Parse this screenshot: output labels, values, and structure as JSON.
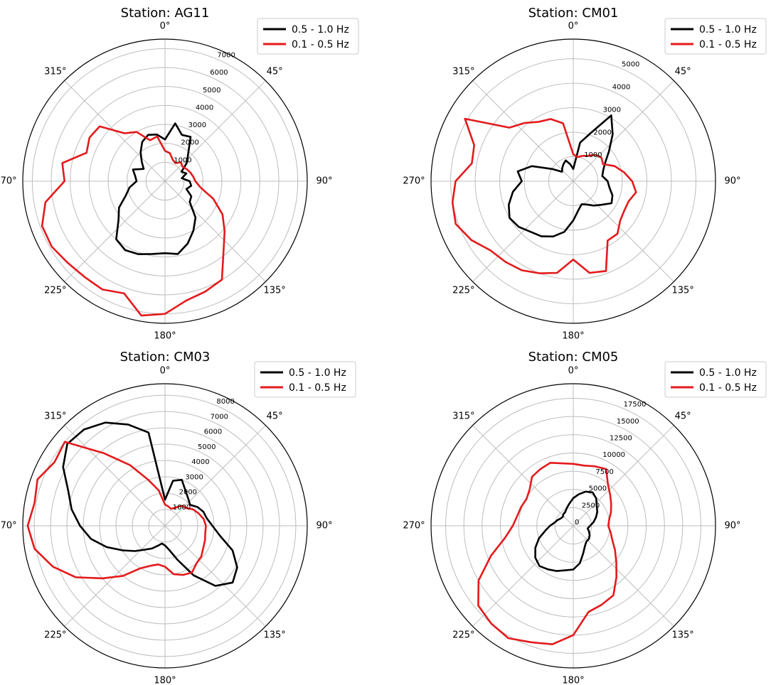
{
  "chart_data": [
    {
      "type": "polar-line",
      "title": "Station: AG11",
      "theta_labels": [
        "0°",
        "45°",
        "90°",
        "135°",
        "180°",
        "225°",
        "270°",
        "315°"
      ],
      "theta_direction": "clockwise",
      "theta_zero": "top",
      "r_ticks": [
        1000,
        2000,
        3000,
        4000,
        5000,
        6000,
        7000
      ],
      "r_tick_labels": [
        "1000",
        "2000",
        "3000",
        "4000",
        "5000",
        "6000",
        "7000"
      ],
      "rlim": [
        0,
        7500
      ],
      "legend": "top-right",
      "grid": true,
      "series": [
        {
          "name": "0.5 - 1.0 Hz",
          "color": "#000000",
          "theta_deg": [
            0,
            10,
            20,
            30,
            40,
            50,
            60,
            70,
            80,
            90,
            100,
            110,
            120,
            130,
            140,
            150,
            160,
            170,
            180,
            190,
            200,
            210,
            220,
            230,
            240,
            250,
            260,
            270,
            280,
            290,
            300,
            310,
            320,
            330,
            340,
            350
          ],
          "r": [
            2200,
            3100,
            2600,
            2700,
            1900,
            1500,
            1000,
            1200,
            900,
            1300,
            1400,
            1200,
            1600,
            1700,
            2500,
            3000,
            3500,
            3900,
            3800,
            3900,
            4100,
            4200,
            4000,
            3200,
            2800,
            2200,
            1900,
            1500,
            1600,
            1800,
            1300,
            1600,
            2000,
            2400,
            2600,
            2500
          ]
        },
        {
          "name": "0.1 - 0.5 Hz",
          "color": "#e41a1c",
          "theta_deg": [
            0,
            10,
            20,
            30,
            40,
            50,
            60,
            70,
            80,
            90,
            100,
            110,
            120,
            130,
            140,
            150,
            160,
            170,
            180,
            190,
            200,
            210,
            220,
            230,
            240,
            250,
            260,
            270,
            280,
            290,
            300,
            310,
            320,
            330,
            340,
            350
          ],
          "r": [
            1600,
            1500,
            1200,
            1100,
            1300,
            1200,
            1300,
            1400,
            1500,
            1600,
            1900,
            2700,
            3500,
            4100,
            4800,
            6000,
            6200,
            6400,
            7000,
            7200,
            6300,
            6600,
            6600,
            6700,
            6900,
            6900,
            6400,
            5300,
            5500,
            4400,
            4600,
            4500,
            3300,
            3000,
            2300,
            2400
          ]
        }
      ]
    },
    {
      "type": "polar-line",
      "title": "Station: CM01",
      "theta_labels": [
        "0°",
        "45°",
        "90°",
        "135°",
        "180°",
        "225°",
        "270°",
        "315°"
      ],
      "theta_direction": "clockwise",
      "theta_zero": "top",
      "r_ticks": [
        1000,
        2000,
        3000,
        4000,
        5000
      ],
      "r_tick_labels": [
        "1000",
        "2000",
        "3000",
        "4000",
        "5000"
      ],
      "rlim": [
        0,
        5800
      ],
      "legend": "top-right",
      "grid": true,
      "series": [
        {
          "name": "0.5 - 1.0 Hz",
          "color": "#000000",
          "theta_deg": [
            0,
            10,
            20,
            30,
            40,
            50,
            60,
            70,
            80,
            90,
            100,
            110,
            120,
            130,
            140,
            150,
            160,
            170,
            180,
            190,
            200,
            210,
            220,
            230,
            240,
            250,
            260,
            270,
            280,
            290,
            300,
            310,
            320,
            330,
            340,
            350
          ],
          "r": [
            500,
            1600,
            2100,
            3100,
            2500,
            1900,
            1500,
            1300,
            1200,
            1400,
            1500,
            1700,
            1800,
            1500,
            1300,
            1100,
            1000,
            1200,
            1600,
            2100,
            2400,
            2600,
            2700,
            2900,
            3000,
            2800,
            2500,
            2100,
            2300,
            1800,
            1000,
            600,
            700,
            800,
            900,
            700
          ]
        },
        {
          "name": "0.1 - 0.5 Hz",
          "color": "#e41a1c",
          "theta_deg": [
            0,
            10,
            20,
            30,
            40,
            50,
            60,
            70,
            80,
            90,
            100,
            110,
            120,
            130,
            140,
            150,
            160,
            170,
            180,
            190,
            200,
            210,
            220,
            230,
            240,
            250,
            260,
            270,
            280,
            290,
            300,
            310,
            320,
            330,
            340,
            350
          ],
          "r": [
            1100,
            1000,
            1100,
            1200,
            1400,
            1500,
            1400,
            1800,
            2100,
            2400,
            2600,
            2400,
            2400,
            2500,
            2800,
            2800,
            3900,
            3800,
            3200,
            3800,
            4000,
            4200,
            4300,
            4400,
            4800,
            5100,
            5000,
            4800,
            4200,
            4300,
            5100,
            3400,
            3100,
            2800,
            2700,
            2400
          ]
        }
      ]
    },
    {
      "type": "polar-line",
      "title": "Station: CM03",
      "theta_labels": [
        "0°",
        "45°",
        "90°",
        "135°",
        "180°",
        "225°",
        "270°",
        "315°"
      ],
      "theta_direction": "clockwise",
      "theta_zero": "top",
      "r_ticks": [
        1000,
        2000,
        3000,
        4000,
        5000,
        6000,
        7000,
        8000
      ],
      "r_tick_labels": [
        "1000",
        "2000",
        "3000",
        "4000",
        "5000",
        "6000",
        "7000",
        "8000"
      ],
      "rlim": [
        0,
        8700
      ],
      "legend": "top-right",
      "grid": true,
      "series": [
        {
          "name": "0.5 - 1.0 Hz",
          "color": "#000000",
          "theta_deg": [
            0,
            10,
            20,
            30,
            40,
            50,
            60,
            70,
            80,
            90,
            100,
            110,
            120,
            130,
            140,
            150,
            160,
            170,
            180,
            190,
            200,
            210,
            220,
            230,
            240,
            250,
            260,
            270,
            280,
            290,
            300,
            310,
            320,
            330,
            340,
            350
          ],
          "r": [
            1600,
            2800,
            3000,
            2500,
            2200,
            2000,
            2300,
            2500,
            2600,
            2900,
            3400,
            4400,
            5100,
            5400,
            4800,
            3500,
            2200,
            1500,
            1200,
            1100,
            1300,
            1600,
            1900,
            2400,
            3000,
            3800,
            4600,
            5200,
            5800,
            6300,
            7200,
            7800,
            7700,
            7300,
            6600,
            5800
          ]
        },
        {
          "name": "0.1 - 0.5 Hz",
          "color": "#e41a1c",
          "theta_deg": [
            0,
            10,
            20,
            30,
            40,
            50,
            60,
            70,
            80,
            90,
            100,
            110,
            120,
            130,
            140,
            150,
            160,
            170,
            180,
            190,
            200,
            210,
            220,
            230,
            240,
            250,
            260,
            270,
            280,
            290,
            300,
            310,
            320,
            330,
            340,
            350
          ],
          "r": [
            1300,
            1200,
            1100,
            1300,
            1600,
            1700,
            2000,
            2200,
            2400,
            2500,
            2500,
            2600,
            2700,
            2900,
            3000,
            3300,
            3200,
            3000,
            2500,
            2400,
            2600,
            3000,
            4000,
            5000,
            6300,
            7300,
            8100,
            8400,
            8100,
            8300,
            7800,
            8000,
            5800,
            4300,
            3000,
            2200
          ]
        }
      ]
    },
    {
      "type": "polar-line",
      "title": "Station: CM05",
      "theta_labels": [
        "0°",
        "45°",
        "90°",
        "135°",
        "180°",
        "225°",
        "270°",
        "315°"
      ],
      "theta_direction": "clockwise",
      "theta_zero": "top",
      "r_ticks": [
        0,
        2500,
        5000,
        7500,
        10000,
        12500,
        15000,
        17500
      ],
      "r_tick_labels": [
        "0",
        "2500",
        "5000",
        "7500",
        "10000",
        "12500",
        "15000",
        "17500"
      ],
      "rlim": [
        0,
        19500
      ],
      "legend": "top-right",
      "grid": true,
      "series": [
        {
          "name": "0.5 - 1.0 Hz",
          "color": "#000000",
          "theta_deg": [
            0,
            10,
            20,
            30,
            40,
            50,
            60,
            70,
            80,
            90,
            100,
            110,
            120,
            130,
            140,
            150,
            160,
            170,
            180,
            190,
            200,
            210,
            220,
            230,
            240,
            250,
            260,
            270,
            280,
            290,
            300,
            310,
            320,
            330,
            340,
            350
          ],
          "r": [
            3800,
            4400,
            5000,
            5300,
            4900,
            4200,
            3800,
            3300,
            2800,
            2300,
            2000,
            2300,
            2600,
            2800,
            2800,
            3200,
            4000,
            5200,
            6000,
            6200,
            6600,
            6900,
            7200,
            6800,
            6000,
            5000,
            3900,
            3200,
            2600,
            2300,
            2000,
            1900,
            2100,
            2200,
            2600,
            3100
          ]
        },
        {
          "name": "0.1 - 0.5 Hz",
          "color": "#e41a1c",
          "theta_deg": [
            0,
            10,
            20,
            30,
            40,
            50,
            60,
            70,
            80,
            90,
            100,
            110,
            120,
            130,
            140,
            150,
            160,
            170,
            180,
            190,
            200,
            210,
            220,
            230,
            240,
            250,
            260,
            270,
            280,
            290,
            300,
            310,
            320,
            330,
            340,
            350
          ],
          "r": [
            8500,
            8400,
            8700,
            9000,
            7400,
            6600,
            6000,
            5500,
            5000,
            4800,
            5200,
            5700,
            6600,
            7700,
            9200,
            11000,
            11500,
            12000,
            15000,
            16500,
            17000,
            17800,
            17500,
            17000,
            15000,
            12000,
            9500,
            8300,
            7800,
            7600,
            7400,
            7800,
            8800,
            9000,
            9200,
            8700
          ]
        }
      ]
    }
  ]
}
